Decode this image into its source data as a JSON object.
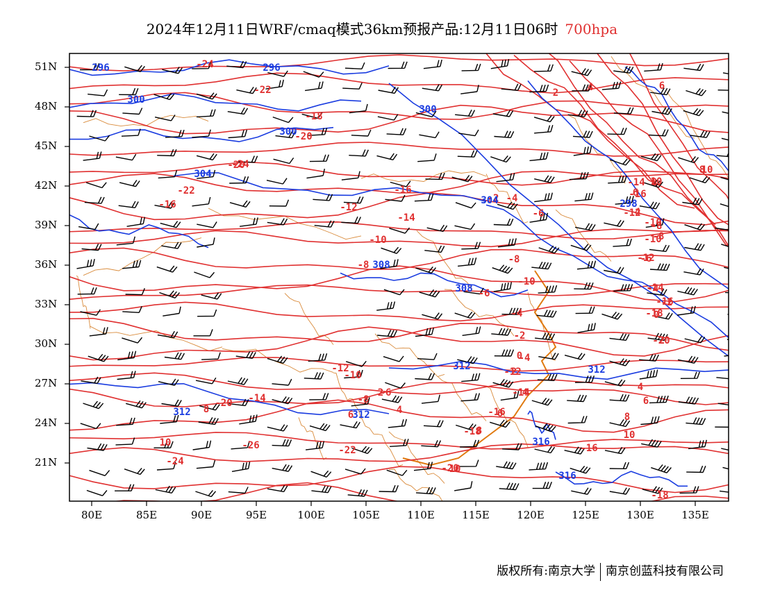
{
  "title": {
    "main": "2024年12月11日WRF/cmaq模式36km预报产品:12月11日06时",
    "level": "700hpa"
  },
  "colors": {
    "temperature": "#e03030",
    "height": "#1a3ce0",
    "border": "#d98a3a",
    "coast": "#e07a10",
    "wind": "#000000"
  },
  "lat_labels": [
    "51N",
    "48N",
    "45N",
    "42N",
    "39N",
    "36N",
    "33N",
    "30N",
    "27N",
    "24N",
    "21N"
  ],
  "lon_labels": [
    "80E",
    "85E",
    "90E",
    "95E",
    "100E",
    "105E",
    "110E",
    "115E",
    "120E",
    "125E",
    "130E",
    "135E"
  ],
  "temp_labels": [
    "-24",
    "-22",
    "-20",
    "-18",
    "-20",
    "-16",
    "-16",
    "-14",
    "-12",
    "-10",
    "-8",
    "-6",
    "-4",
    "-2",
    "0",
    "2",
    "4",
    "6",
    "8",
    "10",
    "-24",
    "-26",
    "-22",
    "-20",
    "-18",
    "-16",
    "-14",
    "-12",
    "-10",
    "-8",
    "-6",
    "-4",
    "-2",
    "2",
    "4",
    "6",
    "8",
    "10",
    "-14",
    "-16",
    "-12",
    "-10",
    "-8",
    "-6",
    "-4",
    "-2",
    "0",
    "2",
    "4",
    "6",
    "8",
    "10",
    "-16",
    "-18",
    "-22",
    "-24",
    "-20",
    "-14",
    "-12",
    "-10",
    "-8",
    "-6",
    "-4",
    "2",
    "4",
    "6",
    "8",
    "10",
    "10",
    "8",
    "6",
    "4",
    "-8",
    "-10",
    "-12",
    "-14",
    "-16",
    "-18",
    "-20",
    "-22",
    "-24"
  ],
  "height_labels": [
    "296",
    "296",
    "300",
    "300",
    "304",
    "304",
    "308",
    "308",
    "312",
    "312",
    "312",
    "316",
    "316",
    "298",
    "300",
    "312"
  ],
  "footer": {
    "left": "版权所有:南京大学",
    "right": "南京创蓝科技有限公司"
  }
}
